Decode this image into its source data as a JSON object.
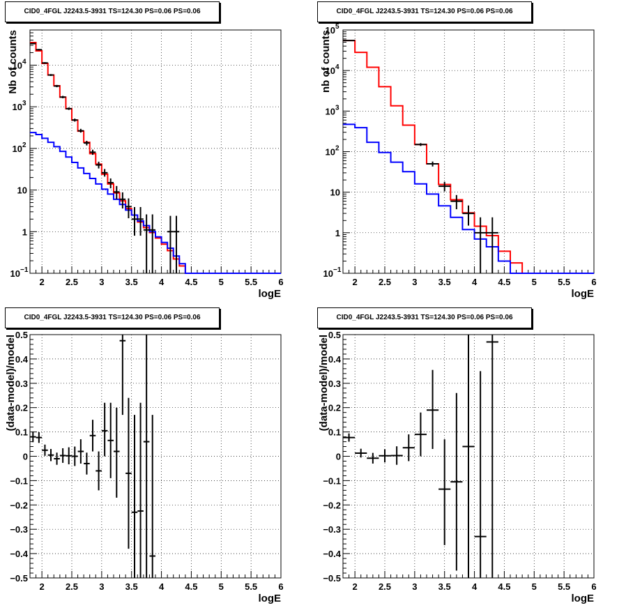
{
  "chart_data": [
    {
      "type": "line",
      "title": "CID0_4FGL J2243.5-3931 TS=124.30 PS=0.06 PS=0.06",
      "xlabel": "logE",
      "ylabel": "Nb of counts",
      "xlim": [
        1.8,
        6.0
      ],
      "ylim": [
        0.1,
        70000
      ],
      "yscale": "log",
      "x_ticks": [
        "2",
        "2.5",
        "3",
        "3.5",
        "4",
        "4.5",
        "5",
        "5.5",
        "6"
      ],
      "y_ticks": [
        {
          "v": 0.1,
          "base": "10",
          "exp": "−1"
        },
        {
          "v": 1,
          "label": "1"
        },
        {
          "v": 10,
          "label": "10"
        },
        {
          "v": 100,
          "base": "10",
          "exp": "2"
        },
        {
          "v": 1000,
          "base": "10",
          "exp": "3"
        },
        {
          "v": 10000,
          "base": "10",
          "exp": "4"
        }
      ],
      "grid": true,
      "hist_edges": [
        1.8,
        1.9,
        2.0,
        2.1,
        2.2,
        2.3,
        2.4,
        2.5,
        2.6,
        2.7,
        2.8,
        2.9,
        3.0,
        3.1,
        3.2,
        3.3,
        3.4,
        3.5,
        3.6,
        3.7,
        3.8,
        3.9,
        4.0,
        4.1,
        4.2,
        4.3,
        4.4,
        4.5,
        4.6,
        4.7,
        6.0
      ],
      "series": [
        {
          "color": "#ff0000",
          "values": [
            35000,
            22000,
            11000,
            5800,
            3200,
            1700,
            900,
            480,
            260,
            140,
            75,
            42,
            24,
            14,
            8.5,
            5.5,
            3.6,
            2.5,
            1.7,
            1.25,
            0.95,
            0.7,
            0.5,
            0.35,
            0.22,
            0.15,
            0.1,
            0.1,
            0.1,
            0.1
          ]
        },
        {
          "color": "#0000ff",
          "values": [
            240,
            215,
            175,
            140,
            110,
            85,
            62,
            46,
            34,
            25,
            19,
            14,
            10.5,
            8,
            6,
            4.5,
            3.3,
            2.5,
            1.8,
            1.4,
            1.0,
            0.75,
            0.55,
            0.4,
            0.26,
            0.17,
            0.1,
            0.1,
            0.1,
            0.1
          ]
        }
      ],
      "points": [
        {
          "x": 1.85,
          "y": 33000,
          "xe": 0.05,
          "lo": 32000,
          "hi": 34000
        },
        {
          "x": 1.95,
          "y": 23500,
          "xe": 0.05,
          "lo": 22500,
          "hi": 24500
        },
        {
          "x": 2.05,
          "y": 11300,
          "xe": 0.05,
          "lo": 10800,
          "hi": 11800
        },
        {
          "x": 2.15,
          "y": 5800,
          "xe": 0.05,
          "lo": 5500,
          "hi": 6100
        },
        {
          "x": 2.25,
          "y": 3150,
          "xe": 0.05,
          "lo": 2950,
          "hi": 3350
        },
        {
          "x": 2.35,
          "y": 1710,
          "xe": 0.05,
          "lo": 1600,
          "hi": 1830
        },
        {
          "x": 2.45,
          "y": 900,
          "xe": 0.05,
          "lo": 840,
          "hi": 960
        },
        {
          "x": 2.55,
          "y": 480,
          "xe": 0.05,
          "lo": 440,
          "hi": 520
        },
        {
          "x": 2.65,
          "y": 265,
          "xe": 0.05,
          "lo": 240,
          "hi": 295
        },
        {
          "x": 2.75,
          "y": 135,
          "xe": 0.05,
          "lo": 118,
          "hi": 152
        },
        {
          "x": 2.85,
          "y": 81,
          "xe": 0.05,
          "lo": 70,
          "hi": 93
        },
        {
          "x": 2.95,
          "y": 40,
          "xe": 0.05,
          "lo": 33,
          "hi": 48
        },
        {
          "x": 3.05,
          "y": 26,
          "xe": 0.05,
          "lo": 21,
          "hi": 32
        },
        {
          "x": 3.15,
          "y": 15,
          "xe": 0.05,
          "lo": 11,
          "hi": 19
        },
        {
          "x": 3.25,
          "y": 9,
          "xe": 0.05,
          "lo": 6,
          "hi": 12.5
        },
        {
          "x": 3.35,
          "y": 6,
          "xe": 0.05,
          "lo": 3.6,
          "hi": 8.8
        },
        {
          "x": 3.45,
          "y": 4,
          "xe": 0.05,
          "lo": 2.1,
          "hi": 6.3
        },
        {
          "x": 3.55,
          "y": 2,
          "xe": 0.05,
          "lo": 0.8,
          "hi": 3.9
        },
        {
          "x": 3.65,
          "y": 2,
          "xe": 0.05,
          "lo": 0.8,
          "hi": 3.9
        },
        {
          "x": 3.75,
          "y": 1.1,
          "xe": 0.05,
          "lo": 0.1,
          "hi": 2.6
        },
        {
          "x": 3.85,
          "y": 1.1,
          "xe": 0.05,
          "lo": 0.1,
          "hi": 2.6
        },
        {
          "x": 4.15,
          "y": 1,
          "xe": 0.05,
          "lo": 0.1,
          "hi": 2.4
        },
        {
          "x": 4.25,
          "y": 1,
          "xe": 0.05,
          "lo": 0.1,
          "hi": 2.4
        }
      ]
    },
    {
      "type": "line",
      "title": "CID0_4FGL J2243.5-3931 TS=124.30 PS=0.06 PS=0.06",
      "xlabel": "logE",
      "ylabel": "nb of counts",
      "xlim": [
        1.8,
        6.0
      ],
      "ylim": [
        0.1,
        100000
      ],
      "yscale": "log",
      "x_ticks": [
        "2",
        "2.5",
        "3",
        "3.5",
        "4",
        "4.5",
        "5",
        "5.5",
        "6"
      ],
      "y_ticks": [
        {
          "v": 0.1,
          "base": "10",
          "exp": "−1"
        },
        {
          "v": 1,
          "label": "1"
        },
        {
          "v": 10,
          "label": "10"
        },
        {
          "v": 100,
          "base": "10",
          "exp": "2"
        },
        {
          "v": 1000,
          "base": "10",
          "exp": "3"
        },
        {
          "v": 10000,
          "base": "10",
          "exp": "4"
        },
        {
          "v": 100000,
          "base": "10",
          "exp": "5"
        }
      ],
      "grid": true,
      "hist_edges": [
        1.8,
        2.0,
        2.2,
        2.4,
        2.6,
        2.8,
        3.0,
        3.2,
        3.4,
        3.6,
        3.8,
        4.0,
        4.2,
        4.4,
        4.6,
        4.8,
        6.0
      ],
      "series": [
        {
          "color": "#ff0000",
          "values": [
            55000,
            28000,
            12000,
            4000,
            1350,
            450,
            150,
            50,
            15.5,
            6.5,
            3.1,
            1.45,
            0.85,
            0.35,
            0.18,
            0.1
          ]
        },
        {
          "color": "#0000ff",
          "values": [
            470,
            390,
            170,
            95,
            55,
            32,
            16,
            9,
            4.6,
            2.4,
            1.2,
            0.7,
            0.45,
            0.2,
            0.1,
            0.1
          ]
        }
      ],
      "points": [
        {
          "x": 1.9,
          "y": 55000,
          "xe": 0.1,
          "lo": 54000,
          "hi": 56000
        },
        {
          "x": 3.1,
          "y": 150,
          "xe": 0.1,
          "lo": 138,
          "hi": 162
        },
        {
          "x": 3.3,
          "y": 50,
          "xe": 0.1,
          "lo": 43,
          "hi": 57
        },
        {
          "x": 3.5,
          "y": 14,
          "xe": 0.1,
          "lo": 10.5,
          "hi": 18
        },
        {
          "x": 3.7,
          "y": 6,
          "xe": 0.1,
          "lo": 3.8,
          "hi": 8.5
        },
        {
          "x": 3.9,
          "y": 3,
          "xe": 0.1,
          "lo": 1.5,
          "hi": 4.7
        },
        {
          "x": 4.1,
          "y": 1,
          "xe": 0.1,
          "lo": 0.1,
          "hi": 2.4
        },
        {
          "x": 4.3,
          "y": 1,
          "xe": 0.1,
          "lo": 0.1,
          "hi": 2.4
        }
      ]
    },
    {
      "type": "scatter",
      "title": "CID0_4FGL J2243.5-3931 TS=124.30 PS=0.06 PS=0.06",
      "xlabel": "logE",
      "ylabel": "(data-model)/model",
      "xlim": [
        1.8,
        6.0
      ],
      "ylim": [
        -0.5,
        0.5
      ],
      "x_ticks": [
        "2",
        "2.5",
        "3",
        "3.5",
        "4",
        "4.5",
        "5",
        "5.5",
        "6"
      ],
      "y_ticks": [
        "−0.5",
        "−0.4",
        "−0.3",
        "−0.2",
        "−0.1",
        "0",
        "0.1",
        "0.2",
        "0.3",
        "0.4",
        "0.5"
      ],
      "grid": true,
      "points": [
        {
          "x": 1.85,
          "y": 0.08,
          "xe": 0.05,
          "lo": 0.058,
          "hi": 0.102
        },
        {
          "x": 1.95,
          "y": 0.077,
          "xe": 0.05,
          "lo": 0.055,
          "hi": 0.099
        },
        {
          "x": 2.05,
          "y": 0.025,
          "xe": 0.05,
          "lo": 0.002,
          "hi": 0.048
        },
        {
          "x": 2.15,
          "y": 0.005,
          "xe": 0.05,
          "lo": -0.02,
          "hi": 0.03
        },
        {
          "x": 2.25,
          "y": -0.01,
          "xe": 0.05,
          "lo": -0.035,
          "hi": 0.015
        },
        {
          "x": 2.35,
          "y": 0.003,
          "xe": 0.05,
          "lo": -0.027,
          "hi": 0.033
        },
        {
          "x": 2.45,
          "y": 0.002,
          "xe": 0.05,
          "lo": -0.033,
          "hi": 0.037
        },
        {
          "x": 2.55,
          "y": 0.0,
          "xe": 0.05,
          "lo": -0.04,
          "hi": 0.04
        },
        {
          "x": 2.65,
          "y": 0.02,
          "xe": 0.05,
          "lo": -0.03,
          "hi": 0.07
        },
        {
          "x": 2.75,
          "y": -0.03,
          "xe": 0.05,
          "lo": -0.075,
          "hi": 0.015
        },
        {
          "x": 2.85,
          "y": 0.085,
          "xe": 0.05,
          "lo": 0.02,
          "hi": 0.15
        },
        {
          "x": 2.95,
          "y": -0.06,
          "xe": 0.05,
          "lo": -0.14,
          "hi": 0.02
        },
        {
          "x": 3.05,
          "y": 0.105,
          "xe": 0.05,
          "lo": 0.0,
          "hi": 0.22
        },
        {
          "x": 3.15,
          "y": 0.065,
          "xe": 0.05,
          "lo": -0.09,
          "hi": 0.22
        },
        {
          "x": 3.25,
          "y": 0.02,
          "xe": 0.05,
          "lo": -0.17,
          "hi": 0.2
        },
        {
          "x": 3.35,
          "y": 0.475,
          "xe": 0.05,
          "lo": 0.17,
          "hi": 0.5
        },
        {
          "x": 3.45,
          "y": -0.07,
          "xe": 0.05,
          "lo": -0.38,
          "hi": 0.24
        },
        {
          "x": 3.55,
          "y": -0.23,
          "xe": 0.05,
          "lo": -0.5,
          "hi": 0.17
        },
        {
          "x": 3.65,
          "y": -0.225,
          "xe": 0.05,
          "lo": -0.5,
          "hi": 0.22
        },
        {
          "x": 3.75,
          "y": 0.06,
          "xe": 0.05,
          "lo": -0.5,
          "hi": 0.5
        },
        {
          "x": 3.85,
          "y": -0.41,
          "xe": 0.05,
          "lo": -0.5,
          "hi": 0.17
        }
      ]
    },
    {
      "type": "scatter",
      "title": "CID0_4FGL J2243.5-3931 TS=124.30 PS=0.06 PS=0.06",
      "xlabel": "logE",
      "ylabel": "(data-model)/model",
      "xlim": [
        1.8,
        6.0
      ],
      "ylim": [
        -0.5,
        0.5
      ],
      "x_ticks": [
        "2",
        "2.5",
        "3",
        "3.5",
        "4",
        "4.5",
        "5",
        "5.5",
        "6"
      ],
      "y_ticks": [
        "−0.5",
        "−0.4",
        "−0.3",
        "−0.2",
        "−0.1",
        "0",
        "0.1",
        "0.2",
        "0.3",
        "0.4",
        "0.5"
      ],
      "grid": true,
      "points": [
        {
          "x": 1.9,
          "y": 0.077,
          "xe": 0.1,
          "lo": 0.06,
          "hi": 0.094
        },
        {
          "x": 2.1,
          "y": 0.013,
          "xe": 0.1,
          "lo": -0.005,
          "hi": 0.031
        },
        {
          "x": 2.3,
          "y": -0.008,
          "xe": 0.1,
          "lo": -0.03,
          "hi": 0.014
        },
        {
          "x": 2.5,
          "y": 0.002,
          "xe": 0.1,
          "lo": -0.025,
          "hi": 0.029
        },
        {
          "x": 2.7,
          "y": 0.003,
          "xe": 0.1,
          "lo": -0.035,
          "hi": 0.041
        },
        {
          "x": 2.9,
          "y": 0.035,
          "xe": 0.1,
          "lo": -0.02,
          "hi": 0.09
        },
        {
          "x": 3.1,
          "y": 0.09,
          "xe": 0.1,
          "lo": 0.0,
          "hi": 0.18
        },
        {
          "x": 3.3,
          "y": 0.19,
          "xe": 0.1,
          "lo": 0.03,
          "hi": 0.355
        },
        {
          "x": 3.5,
          "y": -0.135,
          "xe": 0.1,
          "lo": -0.365,
          "hi": 0.07
        },
        {
          "x": 3.7,
          "y": -0.105,
          "xe": 0.1,
          "lo": -0.47,
          "hi": 0.26
        },
        {
          "x": 3.9,
          "y": 0.04,
          "xe": 0.1,
          "lo": -0.5,
          "hi": 0.5
        },
        {
          "x": 4.1,
          "y": -0.33,
          "xe": 0.1,
          "lo": -0.5,
          "hi": 0.35
        },
        {
          "x": 4.3,
          "y": 0.47,
          "xe": 0.1,
          "lo": -0.5,
          "hi": 0.5
        }
      ]
    }
  ]
}
